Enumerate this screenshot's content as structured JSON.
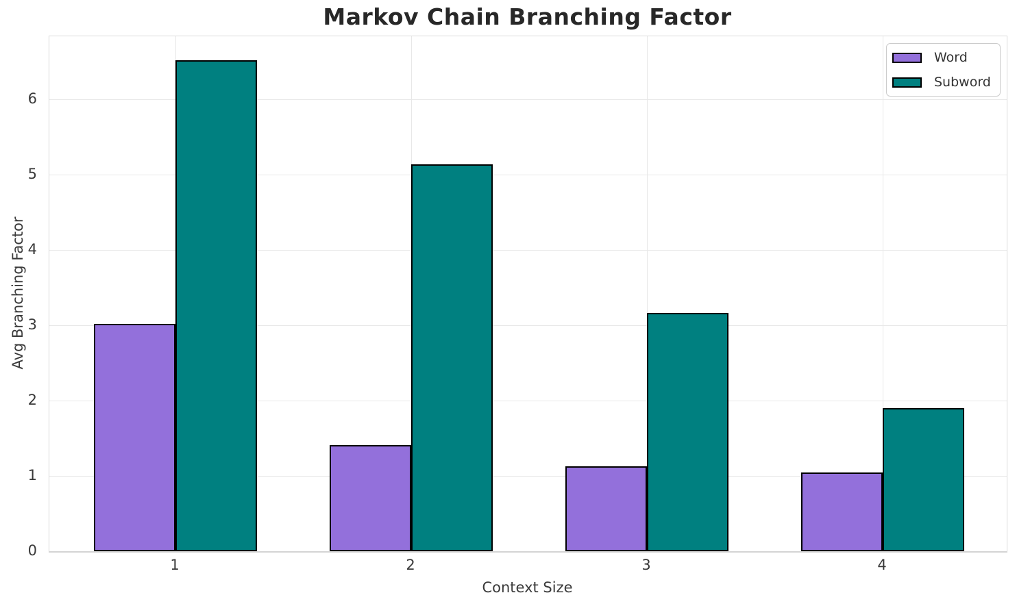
{
  "title": "Markov Chain Branching Factor",
  "chart_data": {
    "type": "bar",
    "categories": [
      "1",
      "2",
      "3",
      "4"
    ],
    "series": [
      {
        "name": "Word",
        "color": "#9370DB",
        "values": [
          3.02,
          1.41,
          1.13,
          1.05
        ]
      },
      {
        "name": "Subword",
        "color": "#008080",
        "values": [
          6.52,
          5.14,
          3.17,
          1.9
        ]
      }
    ],
    "title": "Markov Chain Branching Factor",
    "xlabel": "Context Size",
    "ylabel": "Avg Branching Factor",
    "ylim": [
      0,
      6.84
    ],
    "yticks": [
      0,
      1,
      2,
      3,
      4,
      5,
      6
    ],
    "grid": true,
    "legend_position": "upper right",
    "bar_edge_color": "#000000"
  }
}
